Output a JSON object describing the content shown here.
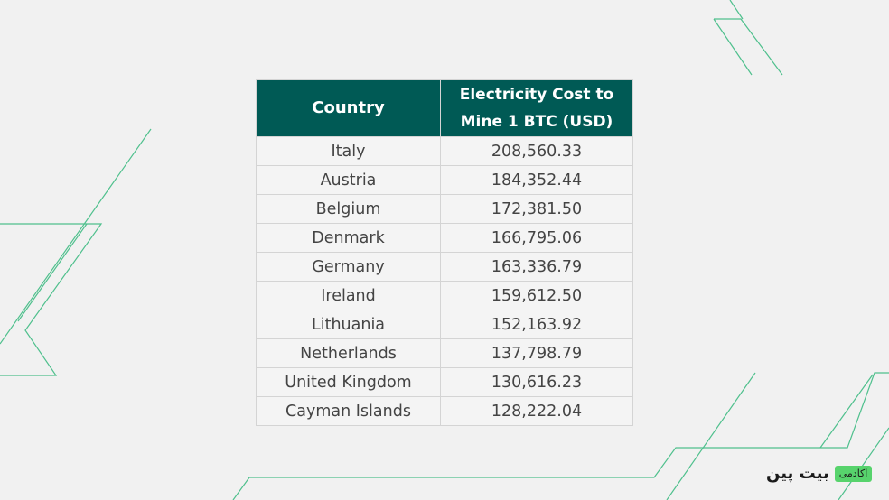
{
  "table": {
    "headers": [
      "Country",
      "Electricity Cost to Mine 1 BTC (USD)"
    ],
    "rows": [
      [
        "Italy",
        "208,560.33"
      ],
      [
        "Austria",
        "184,352.44"
      ],
      [
        "Belgium",
        "172,381.50"
      ],
      [
        "Denmark",
        "166,795.06"
      ],
      [
        "Germany",
        "163,336.79"
      ],
      [
        "Ireland",
        "159,612.50"
      ],
      [
        "Lithuania",
        "152,163.92"
      ],
      [
        "Netherlands",
        "137,798.79"
      ],
      [
        "United Kingdom",
        "130,616.23"
      ],
      [
        "Cayman Islands",
        "128,222.04"
      ]
    ]
  },
  "brand": {
    "name": "بیت پین",
    "badge": "آکادمی"
  },
  "colors": {
    "header_bg": "#005a55",
    "header_text": "#ffffff",
    "accent_line": "#4fc08d",
    "badge_green": "#57d36c"
  }
}
